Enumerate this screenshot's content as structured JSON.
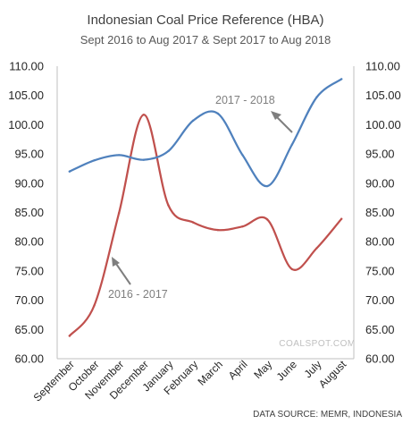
{
  "chart_data": {
    "type": "line",
    "title": "Indonesian Coal Price Reference (HBA)",
    "subtitle": "Sept 2016 to Aug 2017 & Sept 2017 to Aug 2018",
    "categories": [
      "September",
      "October",
      "November",
      "December",
      "January",
      "February",
      "March",
      "April",
      "May",
      "June",
      "July",
      "August"
    ],
    "ylim": [
      60,
      110
    ],
    "yticks": [
      "60.00",
      "65.00",
      "70.00",
      "75.00",
      "80.00",
      "85.00",
      "90.00",
      "95.00",
      "100.00",
      "105.00",
      "110.00"
    ],
    "grid": false,
    "series": [
      {
        "name": "2016 - 2017",
        "color": "#c0504d",
        "values": [
          63.9,
          69.1,
          84.9,
          101.7,
          86.2,
          83.3,
          82.0,
          82.6,
          83.8,
          75.3,
          78.9,
          83.9
        ]
      },
      {
        "name": "2017 - 2018",
        "color": "#4f81bd",
        "values": [
          92.0,
          93.9,
          94.8,
          94.0,
          95.5,
          100.7,
          101.9,
          94.8,
          89.5,
          96.6,
          104.7,
          107.8
        ]
      }
    ],
    "annotations": [
      {
        "text": "2017 - 2018",
        "series": 1
      },
      {
        "text": "2016 - 2017",
        "series": 0
      }
    ]
  },
  "watermark": "COALSPOT.COM",
  "source": "DATA SOURCE: MEMR, INDONESIA"
}
